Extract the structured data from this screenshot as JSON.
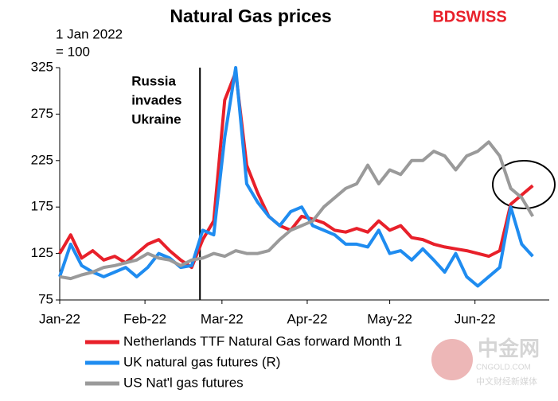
{
  "chart_data": {
    "type": "line",
    "title": "Natural Gas prices",
    "subtitle": [
      "1 Jan 2022",
      "= 100"
    ],
    "brand": "BDSWISS",
    "watermark": [
      "中金网",
      "CNGOLD.COM",
      "中文财经新媒体"
    ],
    "annotations": [
      {
        "text": [
          "Russia",
          "invades",
          "Ukraine"
        ],
        "x": 51
      }
    ],
    "x": [
      0,
      4,
      8,
      12,
      16,
      20,
      24,
      28,
      32,
      36,
      40,
      44,
      48,
      52,
      56,
      60,
      64,
      68,
      72,
      76,
      80,
      84,
      88,
      92,
      96,
      100,
      104,
      108,
      112,
      116,
      120,
      124,
      128,
      132,
      136,
      140,
      144,
      148,
      152,
      156,
      160,
      164,
      168,
      172
    ],
    "xlim": [
      0,
      178
    ],
    "xticks": [
      {
        "value": 0,
        "label": "Jan-22"
      },
      {
        "value": 31,
        "label": "Feb-22"
      },
      {
        "value": 59,
        "label": "Mar-22"
      },
      {
        "value": 90,
        "label": "Apr-22"
      },
      {
        "value": 120,
        "label": "May-22"
      },
      {
        "value": 151,
        "label": "Jun-22"
      }
    ],
    "ylim": [
      75,
      325
    ],
    "yticks": [
      75,
      125,
      175,
      225,
      275,
      325
    ],
    "grid": false,
    "series": [
      {
        "name": "Netherlands TTF Natural Gas forward Month 1",
        "color": "#e8202a",
        "values": [
          125,
          145,
          120,
          128,
          118,
          122,
          115,
          125,
          135,
          140,
          128,
          118,
          110,
          140,
          160,
          290,
          320,
          220,
          190,
          165,
          155,
          150,
          165,
          162,
          158,
          150,
          148,
          152,
          148,
          160,
          150,
          155,
          142,
          140,
          135,
          132,
          130,
          128,
          125,
          122,
          128,
          178,
          188,
          198
        ]
      },
      {
        "name": "UK natural gas futures (R)",
        "color": "#1f8cf0",
        "values": [
          100,
          135,
          112,
          105,
          100,
          105,
          110,
          100,
          110,
          125,
          120,
          110,
          112,
          150,
          145,
          250,
          325,
          200,
          180,
          165,
          155,
          170,
          175,
          155,
          150,
          145,
          135,
          135,
          132,
          150,
          125,
          128,
          118,
          130,
          118,
          105,
          125,
          100,
          90,
          100,
          110,
          175,
          135,
          122
        ]
      },
      {
        "name": "US Nat'l gas futures",
        "color": "#9a9a9a",
        "values": [
          100,
          98,
          102,
          105,
          110,
          112,
          115,
          118,
          125,
          120,
          118,
          112,
          118,
          120,
          125,
          122,
          128,
          125,
          125,
          128,
          140,
          150,
          155,
          160,
          175,
          185,
          195,
          200,
          220,
          200,
          215,
          210,
          225,
          225,
          235,
          230,
          215,
          230,
          235,
          245,
          230,
          195,
          185,
          165
        ]
      }
    ]
  }
}
